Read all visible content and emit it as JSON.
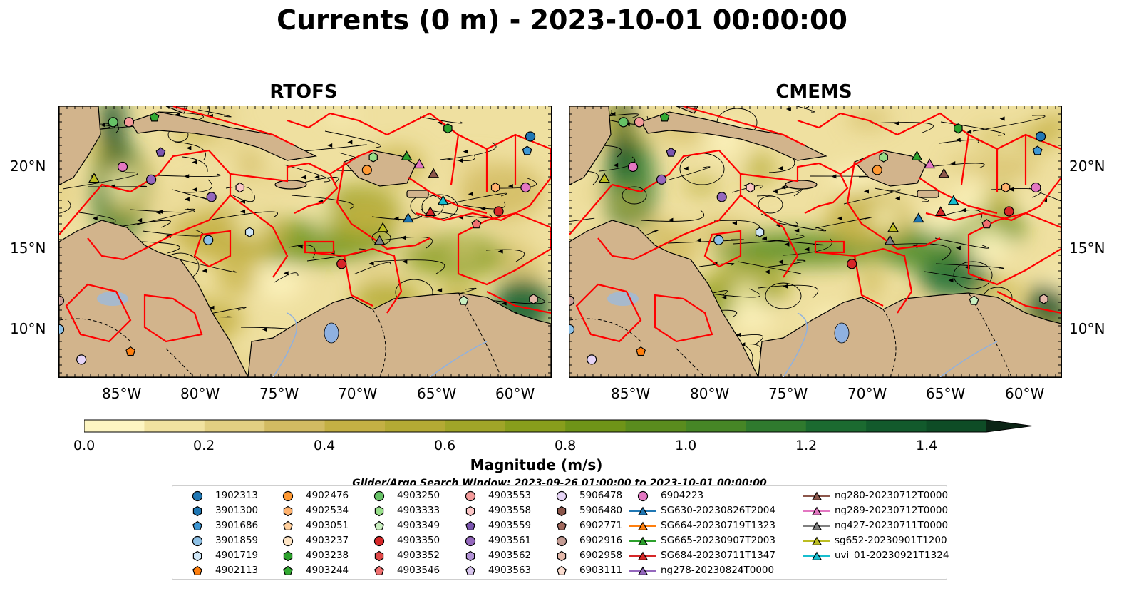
{
  "title": "Currents (0 m) - 2023-10-01 00:00:00",
  "panels": [
    {
      "title": "RTOFS"
    },
    {
      "title": "CMEMS"
    }
  ],
  "map_extent": {
    "lon_min": -89,
    "lon_max": -58,
    "lat_min": 7,
    "lat_max": 24
  },
  "latitude_labels": [
    "20°N",
    "15°N",
    "10°N"
  ],
  "longitude_labels": [
    "85°W",
    "80°W",
    "75°W",
    "70°W",
    "65°W",
    "60°W"
  ],
  "colorbar": {
    "label": "Magnitude (m/s)",
    "ticks": [
      "0.0",
      "0.2",
      "0.4",
      "0.6",
      "0.8",
      "1.0",
      "1.2",
      "1.4"
    ],
    "range": [
      0,
      1.5
    ],
    "colors": [
      "#fdf5c2",
      "#f1e2a0",
      "#e2cf82",
      "#d2bb62",
      "#c4b044",
      "#b4aa34",
      "#a0a528",
      "#889e1c",
      "#6f9418",
      "#5a8c1e",
      "#468626",
      "#2f7a2e",
      "#1b6a30",
      "#125a2c",
      "#0e4c26",
      "#0d3e20",
      "#0c301a",
      "#0b2415"
    ],
    "extend": "max"
  },
  "subtitle": "Glider/Argo Search Window: 2023-09-26 01:00:00 to 2023-10-01 00:00:00",
  "legend": {
    "columns": [
      [
        {
          "label": "1902313",
          "marker": "circle",
          "color": "#1f77b4"
        },
        {
          "label": "3901300",
          "marker": "hexagon",
          "color": "#1f77b4"
        },
        {
          "label": "3901686",
          "marker": "pentagon",
          "color": "#3d97d4"
        },
        {
          "label": "3901859",
          "marker": "circle",
          "color": "#8ec1e6"
        },
        {
          "label": "4901719",
          "marker": "hexagon",
          "color": "#cfe6f6"
        },
        {
          "label": "4902113",
          "marker": "pentagon",
          "color": "#ff7f0e"
        }
      ],
      [
        {
          "label": "4902476",
          "marker": "circle",
          "color": "#ff9933"
        },
        {
          "label": "4902534",
          "marker": "hexagon",
          "color": "#ffb26e"
        },
        {
          "label": "4903051",
          "marker": "pentagon",
          "color": "#ffcf9c"
        },
        {
          "label": "4903237",
          "marker": "circle",
          "color": "#ffe6c6"
        },
        {
          "label": "4903238",
          "marker": "hexagon",
          "color": "#2ca02c"
        },
        {
          "label": "4903244",
          "marker": "pentagon",
          "color": "#33aa33"
        }
      ],
      [
        {
          "label": "4903250",
          "marker": "circle",
          "color": "#66c266"
        },
        {
          "label": "4903333",
          "marker": "hexagon",
          "color": "#98df8a"
        },
        {
          "label": "4903349",
          "marker": "pentagon",
          "color": "#c9efc0"
        },
        {
          "label": "4903350",
          "marker": "circle",
          "color": "#d62728"
        },
        {
          "label": "4903352",
          "marker": "hexagon",
          "color": "#e04848"
        },
        {
          "label": "4903546",
          "marker": "pentagon",
          "color": "#f07070"
        }
      ],
      [
        {
          "label": "4903553",
          "marker": "circle",
          "color": "#f49a9a"
        },
        {
          "label": "4903558",
          "marker": "hexagon",
          "color": "#fbc6c6"
        },
        {
          "label": "4903559",
          "marker": "pentagon",
          "color": "#7b55b0"
        },
        {
          "label": "4903561",
          "marker": "circle",
          "color": "#9467bd"
        },
        {
          "label": "4903562",
          "marker": "hexagon",
          "color": "#b292d6"
        },
        {
          "label": "4903563",
          "marker": "pentagon",
          "color": "#d8c5ee"
        }
      ],
      [
        {
          "label": "5906478",
          "marker": "circle",
          "color": "#e6d4f6"
        },
        {
          "label": "5906480",
          "marker": "hexagon",
          "color": "#8c564b"
        },
        {
          "label": "6902771",
          "marker": "pentagon",
          "color": "#a0685c"
        },
        {
          "label": "6902916",
          "marker": "circle",
          "color": "#c49c94"
        },
        {
          "label": "6902958",
          "marker": "hexagon",
          "color": "#e4b8aa"
        },
        {
          "label": "6903111",
          "marker": "pentagon",
          "color": "#fbdccf"
        }
      ],
      [
        {
          "label": "6904223",
          "marker": "circle",
          "color": "#e377c2"
        },
        {
          "label": "SG630-20230826T2004",
          "marker": "triangle",
          "color": "#1f77b4"
        },
        {
          "label": "SG664-20230719T1323",
          "marker": "triangle",
          "color": "#ff7f0e"
        },
        {
          "label": "SG665-20230907T2003",
          "marker": "triangle",
          "color": "#2ca02c"
        },
        {
          "label": "SG684-20230711T1347",
          "marker": "triangle",
          "color": "#d62728"
        },
        {
          "label": "ng278-20230824T0000",
          "marker": "triangle",
          "color": "#9467bd"
        }
      ],
      [
        {
          "label": "ng280-20230712T0000",
          "marker": "triangle",
          "color": "#8c564b"
        },
        {
          "label": "ng289-20230712T0000",
          "marker": "triangle",
          "color": "#e377c2"
        },
        {
          "label": "ng427-20230711T0000",
          "marker": "triangle",
          "color": "#7f7f7f"
        },
        {
          "label": "sg652-20230901T1200",
          "marker": "triangle",
          "color": "#bcbd22"
        },
        {
          "label": "uvi_01-20230921T1324",
          "marker": "triangle",
          "color": "#17becf"
        }
      ]
    ]
  },
  "observations": [
    {
      "id": "4903250",
      "lon": -85.6,
      "lat": 23.0
    },
    {
      "id": "4903553",
      "lon": -84.6,
      "lat": 23.0
    },
    {
      "id": "4903244",
      "lon": -83.0,
      "lat": 23.3
    },
    {
      "id": "4903559",
      "lon": -82.6,
      "lat": 21.1
    },
    {
      "id": "6904223",
      "lon": -85.0,
      "lat": 20.2
    },
    {
      "id": "4903561",
      "lon": -83.2,
      "lat": 19.4
    },
    {
      "id": "sg652-20230901T1200",
      "lon": -86.8,
      "lat": 19.5
    },
    {
      "id": "4903561",
      "lon": -79.4,
      "lat": 18.3
    },
    {
      "id": "4903558",
      "lon": -77.6,
      "lat": 18.9
    },
    {
      "id": "4901719",
      "lon": -77.0,
      "lat": 16.1
    },
    {
      "id": "3901859",
      "lon": -79.6,
      "lat": 15.6
    },
    {
      "id": "4903333",
      "lon": -69.2,
      "lat": 20.8
    },
    {
      "id": "4902476",
      "lon": -69.6,
      "lat": 20.0
    },
    {
      "id": "SG665-20230907T2003",
      "lon": -67.1,
      "lat": 20.9
    },
    {
      "id": "ng289-20230712T0000",
      "lon": -66.3,
      "lat": 20.4
    },
    {
      "id": "ng280-20230712T0000",
      "lon": -65.4,
      "lat": 19.8
    },
    {
      "id": "4903238",
      "lon": -64.5,
      "lat": 22.6
    },
    {
      "id": "1902313",
      "lon": -59.3,
      "lat": 22.1
    },
    {
      "id": "3901686",
      "lon": -59.5,
      "lat": 21.2
    },
    {
      "id": "4902534",
      "lon": -61.5,
      "lat": 18.9
    },
    {
      "id": "6904223",
      "lon": -59.6,
      "lat": 18.9
    },
    {
      "id": "uvi_01-20230921T1324",
      "lon": -64.8,
      "lat": 18.1
    },
    {
      "id": "SG684-20230711T1347",
      "lon": -65.6,
      "lat": 17.4
    },
    {
      "id": "SG630-20230826T2004",
      "lon": -67.0,
      "lat": 17.0
    },
    {
      "id": "4903546",
      "lon": -62.7,
      "lat": 16.6
    },
    {
      "id": "4903350",
      "lon": -61.3,
      "lat": 17.4
    },
    {
      "id": "sg652-20230901T1200",
      "lon": -68.6,
      "lat": 16.4
    },
    {
      "id": "ng427-20230711T0000",
      "lon": -68.8,
      "lat": 15.6
    },
    {
      "id": "4903350",
      "lon": -71.2,
      "lat": 14.1
    },
    {
      "id": "4903349",
      "lon": -63.5,
      "lat": 11.8
    },
    {
      "id": "6902958",
      "lon": -59.1,
      "lat": 11.9
    },
    {
      "id": "6902916",
      "lon": -89.0,
      "lat": 11.8
    },
    {
      "id": "3901859",
      "lon": -89.0,
      "lat": 10.0
    },
    {
      "id": "4902113",
      "lon": -84.5,
      "lat": 8.6
    },
    {
      "id": "5906478",
      "lon": -87.6,
      "lat": 8.1
    }
  ]
}
